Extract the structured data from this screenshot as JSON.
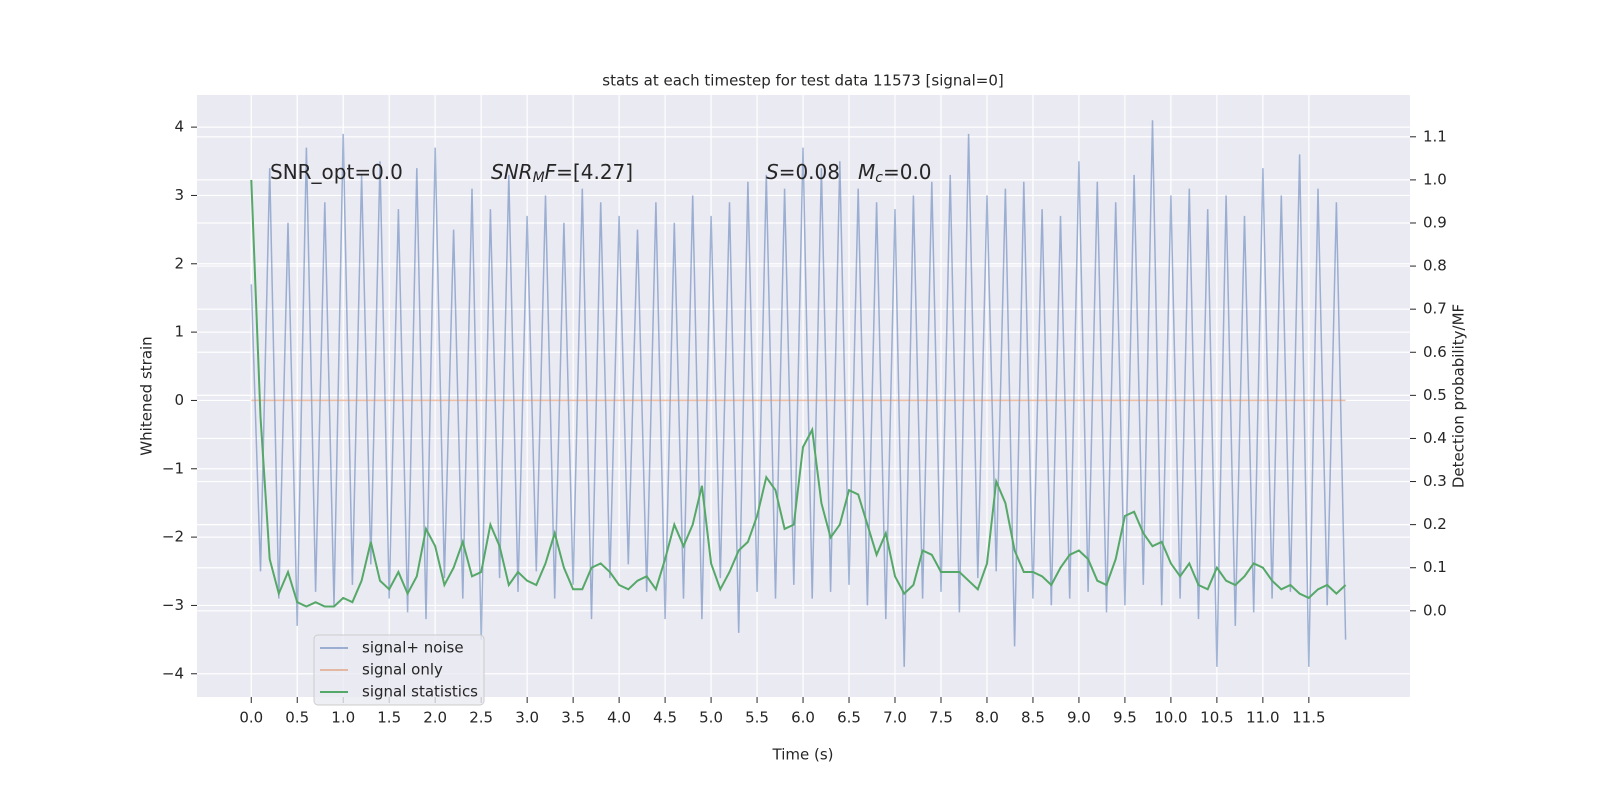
{
  "chart_data": {
    "type": "line",
    "title": "stats at each timestep for test data 11573 [signal=0]",
    "xlabel": "Time (s)",
    "ylabel": "Whitened strain",
    "y2label": "Detection probability/MF",
    "annotations": [
      [
        "SNR_opt=0.0"
      ],
      [
        "SNR",
        "M",
        "F",
        "=[4.27]"
      ],
      [
        "S",
        "=0.08"
      ],
      [
        "M",
        "c",
        "=0.0"
      ]
    ],
    "xlim": [
      -0.59,
      12.6
    ],
    "ylim": [
      -4.34,
      4.47
    ],
    "y2lim": [
      -0.2,
      1.197
    ],
    "xticks": [
      {
        "value": 0,
        "label": "0.0"
      },
      0.5,
      {
        "value": 1,
        "label": "1.0"
      },
      1.5,
      {
        "value": 2,
        "label": "2.0"
      },
      2.5,
      {
        "value": 3,
        "label": "3.0"
      },
      3.5,
      {
        "value": 4,
        "label": "4.0"
      },
      4.5,
      {
        "value": 5,
        "label": "5.0"
      },
      5.5,
      {
        "value": 6,
        "label": "6.0"
      },
      6.5,
      {
        "value": 7,
        "label": "7.0"
      },
      7.5,
      {
        "value": 8,
        "label": "8.0"
      },
      8.5,
      {
        "value": 9,
        "label": "9.0"
      },
      9.5,
      {
        "value": 10,
        "label": "10.0"
      },
      10.5,
      {
        "value": 11,
        "label": "11.0"
      },
      11.5
    ],
    "yticks": [
      {
        "value": -4,
        "label": "−4"
      },
      {
        "value": -3,
        "label": "−3"
      },
      {
        "value": -2,
        "label": "−2"
      },
      {
        "value": -1,
        "label": "−1"
      },
      0,
      1,
      2,
      3,
      4
    ],
    "y2ticks": [
      {
        "value": 0,
        "label": "0.0"
      },
      0.1,
      0.2,
      0.3,
      0.4,
      0.5,
      0.6,
      0.7,
      0.8,
      0.9,
      {
        "value": 1,
        "label": "1.0"
      },
      1.1
    ],
    "grid": true,
    "legend": "lower left",
    "x": [
      0,
      0.1,
      0.2,
      0.3,
      0.4,
      0.5,
      0.6,
      0.7,
      0.8,
      0.9,
      1,
      1.1,
      1.2,
      1.3,
      1.4,
      1.5,
      1.6,
      1.7,
      1.8,
      1.9,
      2,
      2.1,
      2.2,
      2.3,
      2.4,
      2.5,
      2.6,
      2.7,
      2.8,
      2.9,
      3,
      3.1,
      3.2,
      3.3,
      3.4,
      3.5,
      3.6,
      3.7,
      3.8,
      3.9,
      4,
      4.1,
      4.2,
      4.3,
      4.4,
      4.5,
      4.6,
      4.7,
      4.8,
      4.9,
      5,
      5.1,
      5.2,
      5.3,
      5.4,
      5.5,
      5.6,
      5.7,
      5.8,
      5.9,
      6,
      6.1,
      6.2,
      6.3,
      6.4,
      6.5,
      6.6,
      6.7,
      6.8,
      6.9,
      7,
      7.1,
      7.2,
      7.3,
      7.4,
      7.5,
      7.6,
      7.7,
      7.8,
      7.9,
      8,
      8.1,
      8.2,
      8.3,
      8.4,
      8.5,
      8.6,
      8.7,
      8.8,
      8.9,
      9,
      9.1,
      9.2,
      9.3,
      9.4,
      9.5,
      9.6,
      9.7,
      9.8,
      9.9,
      10,
      10.1,
      10.2,
      10.3,
      10.4,
      10.5,
      10.6,
      10.7,
      10.8,
      10.9,
      11,
      11.1,
      11.2,
      11.3,
      11.4,
      11.5,
      11.6,
      11.7,
      11.8,
      11.9
    ],
    "series": [
      {
        "name": "signal+ noise",
        "color": "#4c72b0",
        "opacity": 0.5,
        "values": [
          1.7,
          -2.5,
          3.4,
          -2.9,
          2.6,
          -3.3,
          3.7,
          -2.8,
          2.9,
          -3.0,
          3.9,
          -2.7,
          3.3,
          -2.4,
          3.5,
          -2.9,
          2.8,
          -3.1,
          3.4,
          -3.2,
          3.7,
          -2.6,
          2.5,
          -2.9,
          3.1,
          -3.5,
          2.8,
          -2.6,
          3.3,
          -2.8,
          2.7,
          -2.5,
          3.0,
          -2.9,
          2.6,
          -2.7,
          3.1,
          -3.2,
          2.9,
          -2.6,
          2.7,
          -2.4,
          2.5,
          -2.8,
          2.9,
          -3.2,
          2.6,
          -2.9,
          3.0,
          -3.2,
          2.7,
          -2.6,
          2.9,
          -3.4,
          3.2,
          -2.8,
          3.3,
          -2.9,
          3.1,
          -2.7,
          3.7,
          -2.9,
          3.4,
          -2.8,
          3.5,
          -2.7,
          3.1,
          -3.0,
          2.9,
          -3.2,
          2.8,
          -3.9,
          3.0,
          -2.9,
          3.2,
          -2.8,
          3.3,
          -3.1,
          3.9,
          -2.6,
          3.0,
          -2.5,
          3.1,
          -3.6,
          3.2,
          -2.9,
          2.8,
          -3.0,
          2.7,
          -2.9,
          3.5,
          -2.8,
          3.2,
          -3.1,
          2.9,
          -3.0,
          3.3,
          -2.7,
          4.1,
          -3.0,
          3.0,
          -2.9,
          3.1,
          -3.2,
          2.8,
          -3.9,
          3.0,
          -3.3,
          2.7,
          -3.1,
          3.4,
          -2.9,
          3.0,
          -2.8,
          3.6,
          -3.9,
          3.1,
          -3.0,
          2.9,
          -3.5
        ]
      },
      {
        "name": "signal only",
        "color": "#dd8452",
        "opacity": 0.5,
        "x": [
          0,
          11.9
        ],
        "values": [
          0,
          0
        ]
      },
      {
        "name": "signal statistics",
        "color": "#55a868",
        "opacity": 1,
        "axis": "y2",
        "values": [
          1.0,
          0.45,
          0.12,
          0.04,
          0.09,
          0.02,
          0.01,
          0.02,
          0.01,
          0.01,
          0.03,
          0.02,
          0.07,
          0.16,
          0.07,
          0.05,
          0.09,
          0.04,
          0.08,
          0.19,
          0.15,
          0.06,
          0.1,
          0.16,
          0.08,
          0.09,
          0.2,
          0.15,
          0.06,
          0.09,
          0.07,
          0.06,
          0.11,
          0.18,
          0.1,
          0.05,
          0.05,
          0.1,
          0.11,
          0.09,
          0.06,
          0.05,
          0.07,
          0.08,
          0.05,
          0.12,
          0.2,
          0.15,
          0.2,
          0.29,
          0.11,
          0.05,
          0.09,
          0.14,
          0.16,
          0.22,
          0.31,
          0.28,
          0.19,
          0.2,
          0.38,
          0.42,
          0.25,
          0.17,
          0.2,
          0.28,
          0.27,
          0.2,
          0.13,
          0.18,
          0.08,
          0.04,
          0.06,
          0.14,
          0.13,
          0.09,
          0.09,
          0.09,
          0.07,
          0.05,
          0.11,
          0.3,
          0.25,
          0.14,
          0.09,
          0.09,
          0.08,
          0.06,
          0.1,
          0.13,
          0.14,
          0.12,
          0.07,
          0.06,
          0.12,
          0.22,
          0.23,
          0.18,
          0.15,
          0.16,
          0.11,
          0.08,
          0.11,
          0.06,
          0.05,
          0.1,
          0.07,
          0.06,
          0.08,
          0.11,
          0.1,
          0.07,
          0.05,
          0.06,
          0.04,
          0.03,
          0.05,
          0.06,
          0.04,
          0.06
        ]
      }
    ]
  }
}
